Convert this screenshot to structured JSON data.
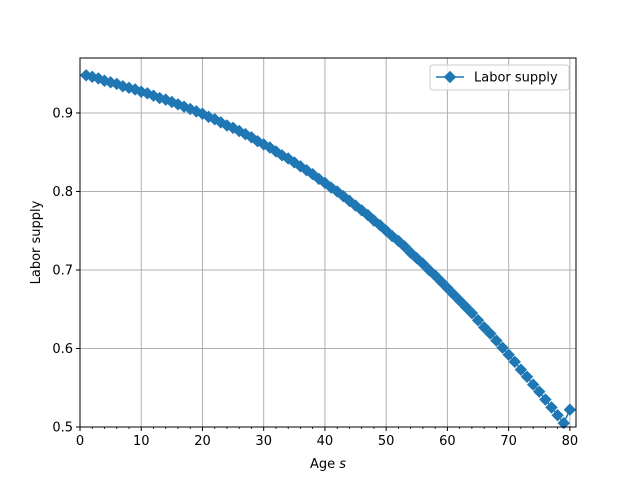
{
  "chart_data": {
    "type": "line",
    "title": "",
    "xlabel": "Age s",
    "xlabel_main": "Age ",
    "xlabel_var": "s",
    "ylabel": "Labor supply",
    "xlim": [
      0,
      81
    ],
    "ylim": [
      0.5,
      0.97
    ],
    "xticks": [
      "0",
      "10",
      "20",
      "30",
      "40",
      "50",
      "60",
      "70",
      "80"
    ],
    "yticks": [
      "0.5",
      "0.6",
      "0.7",
      "0.8",
      "0.9"
    ],
    "grid": true,
    "legend_position": "top-right",
    "marker": "diamond",
    "series": [
      {
        "name": "Labor supply",
        "color": "#1f77b4",
        "x": [
          1,
          2,
          3,
          4,
          5,
          6,
          7,
          8,
          9,
          10,
          11,
          12,
          13,
          14,
          15,
          16,
          17,
          18,
          19,
          20,
          21,
          22,
          23,
          24,
          25,
          26,
          27,
          28,
          29,
          30,
          31,
          32,
          33,
          34,
          35,
          36,
          37,
          38,
          39,
          40,
          41,
          42,
          43,
          44,
          45,
          46,
          47,
          48,
          49,
          50,
          51,
          52,
          53,
          54,
          55,
          56,
          57,
          58,
          59,
          60,
          61,
          62,
          63,
          64,
          65,
          66,
          67,
          68,
          69,
          70,
          71,
          72,
          73,
          74,
          75,
          76,
          77,
          78,
          79,
          80
        ],
        "y": [
          0.948,
          0.946,
          0.944,
          0.941,
          0.939,
          0.937,
          0.934,
          0.932,
          0.93,
          0.927,
          0.925,
          0.922,
          0.919,
          0.917,
          0.914,
          0.911,
          0.908,
          0.905,
          0.902,
          0.899,
          0.895,
          0.892,
          0.888,
          0.884,
          0.881,
          0.877,
          0.873,
          0.869,
          0.864,
          0.86,
          0.856,
          0.851,
          0.846,
          0.842,
          0.837,
          0.832,
          0.827,
          0.822,
          0.816,
          0.811,
          0.805,
          0.8,
          0.794,
          0.788,
          0.782,
          0.776,
          0.77,
          0.763,
          0.757,
          0.75,
          0.743,
          0.737,
          0.73,
          0.722,
          0.715,
          0.708,
          0.7,
          0.693,
          0.685,
          0.677,
          0.669,
          0.661,
          0.653,
          0.645,
          0.636,
          0.627,
          0.619,
          0.61,
          0.601,
          0.592,
          0.583,
          0.573,
          0.564,
          0.554,
          0.545,
          0.535,
          0.525,
          0.515,
          0.505,
          0.522
        ]
      }
    ]
  }
}
